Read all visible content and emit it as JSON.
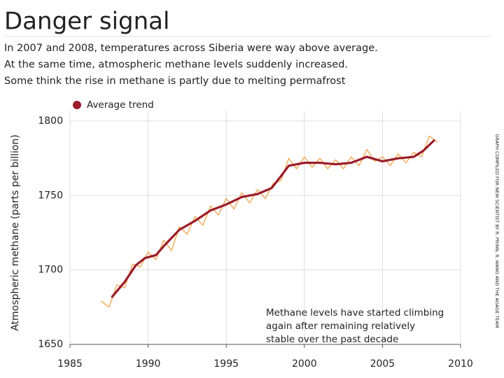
{
  "chart_data": {
    "type": "line",
    "title": "Danger signal",
    "subtitle": [
      "In 2007 and 2008, temperatures across Siberia were way above average.",
      "At the same time, atmospheric methane levels suddenly increased.",
      "Some think the rise in methane is partly due to melting permafrost"
    ],
    "y_label": "Atmospheric methane (parts per billion)",
    "annotation": [
      "Methane levels have started climbing",
      "again after remaining relatively",
      "stable over the past decade"
    ],
    "credit": "GRAPH COMPILED FOR NEW SCIENTIST BY R. PRINN, R. WANG AND THE AGAGE TEAM",
    "series": [
      {
        "color": "#f0a34a",
        "x": [
          1987.0,
          1987.5,
          1988.0,
          1988.5,
          1989.0,
          1989.5,
          1990.0,
          1990.5,
          1991.0,
          1991.5,
          1992.0,
          1992.5,
          1993.0,
          1993.5,
          1994.0,
          1994.5,
          1995.0,
          1995.5,
          1996.0,
          1996.5,
          1997.0,
          1997.5,
          1998.0,
          1998.5,
          1999.0,
          1999.5,
          2000.0,
          2000.5,
          2001.0,
          2001.5,
          2002.0,
          2002.5,
          2003.0,
          2003.5,
          2004.0,
          2004.5,
          2005.0,
          2005.5,
          2006.0,
          2006.5,
          2007.0,
          2007.5,
          2008.0,
          2008.5
        ],
        "values": [
          1679,
          1675,
          1690,
          1688,
          1704,
          1702,
          1712,
          1707,
          1720,
          1713,
          1729,
          1724,
          1736,
          1730,
          1743,
          1737,
          1748,
          1741,
          1752,
          1745,
          1754,
          1748,
          1758,
          1760,
          1775,
          1768,
          1776,
          1769,
          1775,
          1768,
          1774,
          1768,
          1776,
          1770,
          1781,
          1773,
          1776,
          1770,
          1778,
          1772,
          1779,
          1776,
          1790,
          1786
        ]
      },
      {
        "name": "Average trend",
        "color": "#9b1c2a",
        "x": [
          1987.7,
          1988.5,
          1989.2,
          1989.8,
          1990.5,
          1991.0,
          1992.0,
          1993.0,
          1994.0,
          1995.0,
          1996.0,
          1997.0,
          1997.9,
          1998.5,
          1999.0,
          2000.0,
          2001.0,
          2002.0,
          2003.0,
          2004.0,
          2005.0,
          2006.0,
          2007.0,
          2007.6,
          2008.3
        ],
        "values": [
          1682,
          1692,
          1703,
          1708,
          1710,
          1716,
          1727,
          1733,
          1740,
          1744,
          1749,
          1751,
          1755,
          1763,
          1770,
          1772,
          1772,
          1771,
          1772,
          1776,
          1773,
          1775,
          1776,
          1780,
          1787
        ]
      }
    ],
    "xlim": [
      1985,
      2010
    ],
    "xticks": [
      1985,
      1990,
      1995,
      2000,
      2005,
      2010
    ],
    "ylim": [
      1650,
      1800
    ],
    "yticks": [
      1650,
      1700,
      1750,
      1800
    ],
    "grid": true,
    "legend": "top-left"
  }
}
